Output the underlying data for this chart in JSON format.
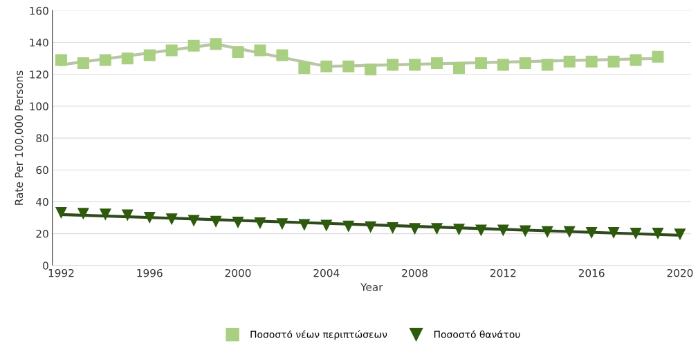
{
  "chart_data": {
    "type": "scatter",
    "xlabel": "Year",
    "ylabel": "Rate Per 100,000 Persons",
    "xlim": [
      1991.6,
      2020.5
    ],
    "xticks": [
      1992,
      1996,
      2000,
      2004,
      2008,
      2012,
      2016,
      2020
    ],
    "ylim": [
      0,
      160
    ],
    "yticks": [
      0,
      20,
      40,
      60,
      80,
      100,
      120,
      140,
      160
    ],
    "grid": "y",
    "legend": "bottom",
    "series": [
      {
        "type": "line",
        "color": "#b9c6a6",
        "marker": "none",
        "x": [
          1992,
          1999,
          2004,
          2019
        ],
        "values": [
          126,
          139,
          125,
          130
        ]
      },
      {
        "type": "line",
        "color": "#2f4a1c",
        "marker": "none",
        "x": [
          1992,
          2020
        ],
        "values": [
          32,
          19
        ]
      },
      {
        "name": "Ποσοστό νέων περιπτώσεων",
        "color": "#a9cf80",
        "marker": "square",
        "x": [
          1992,
          1993,
          1994,
          1995,
          1996,
          1997,
          1998,
          1999,
          2000,
          2001,
          2002,
          2003,
          2004,
          2005,
          2006,
          2007,
          2008,
          2009,
          2010,
          2011,
          2012,
          2013,
          2014,
          2015,
          2016,
          2017,
          2018,
          2019
        ],
        "values": [
          129,
          127,
          129,
          130,
          132,
          135,
          138,
          139,
          134,
          135,
          132,
          124,
          125,
          125,
          123,
          126,
          126,
          127,
          124,
          127,
          126,
          127,
          126,
          128,
          128,
          128,
          129,
          131
        ]
      },
      {
        "name": "Ποσοστό θανάτου",
        "color": "#2e5a0c",
        "marker": "triangle",
        "x": [
          1992,
          1993,
          1994,
          1995,
          1996,
          1997,
          1998,
          1999,
          2000,
          2001,
          2002,
          2003,
          2004,
          2005,
          2006,
          2007,
          2008,
          2009,
          2010,
          2011,
          2012,
          2013,
          2014,
          2015,
          2016,
          2017,
          2018,
          2019,
          2020
        ],
        "values": [
          33,
          32.5,
          32,
          31.5,
          30,
          29,
          28,
          27.5,
          27,
          26.5,
          26,
          25.5,
          25,
          24.5,
          24,
          23.5,
          23,
          23,
          22.5,
          22,
          22,
          21.5,
          21,
          21,
          20.5,
          20.5,
          20,
          20,
          19.5
        ]
      }
    ]
  }
}
